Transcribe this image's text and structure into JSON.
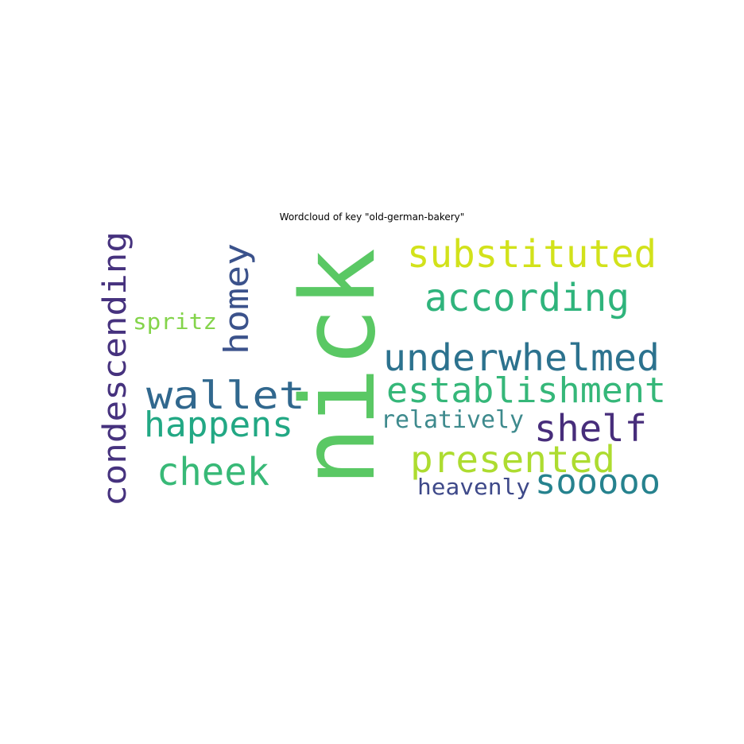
{
  "figure": {
    "title": "Wordcloud of key \"old-german-bakery\""
  },
  "wordcloud": {
    "words": [
      {
        "text": "nick",
        "color": "#5ac864",
        "orientation": "vertical"
      },
      {
        "text": "condescending",
        "color": "#46327e",
        "orientation": "vertical"
      },
      {
        "text": "homey",
        "color": "#3b528b",
        "orientation": "vertical"
      },
      {
        "text": "substituted",
        "color": "#d2e21b",
        "orientation": "horizontal"
      },
      {
        "text": "according",
        "color": "#2fb47c",
        "orientation": "horizontal"
      },
      {
        "text": "spritz",
        "color": "#84d44b",
        "orientation": "horizontal"
      },
      {
        "text": "underwhelmed",
        "color": "#2c728e",
        "orientation": "horizontal"
      },
      {
        "text": "wallet",
        "color": "#31688e",
        "orientation": "horizontal"
      },
      {
        "text": "establishment",
        "color": "#35b779",
        "orientation": "horizontal"
      },
      {
        "text": "happens",
        "color": "#22a884",
        "orientation": "horizontal"
      },
      {
        "text": "relatively",
        "color": "#3e8a8d",
        "orientation": "horizontal"
      },
      {
        "text": "shelf",
        "color": "#472d7b",
        "orientation": "horizontal"
      },
      {
        "text": "presented",
        "color": "#addc30",
        "orientation": "horizontal"
      },
      {
        "text": "cheek",
        "color": "#38b977",
        "orientation": "horizontal"
      },
      {
        "text": "heavenly",
        "color": "#3e4989",
        "orientation": "horizontal"
      },
      {
        "text": "sooooo",
        "color": "#26828e",
        "orientation": "horizontal"
      }
    ]
  }
}
